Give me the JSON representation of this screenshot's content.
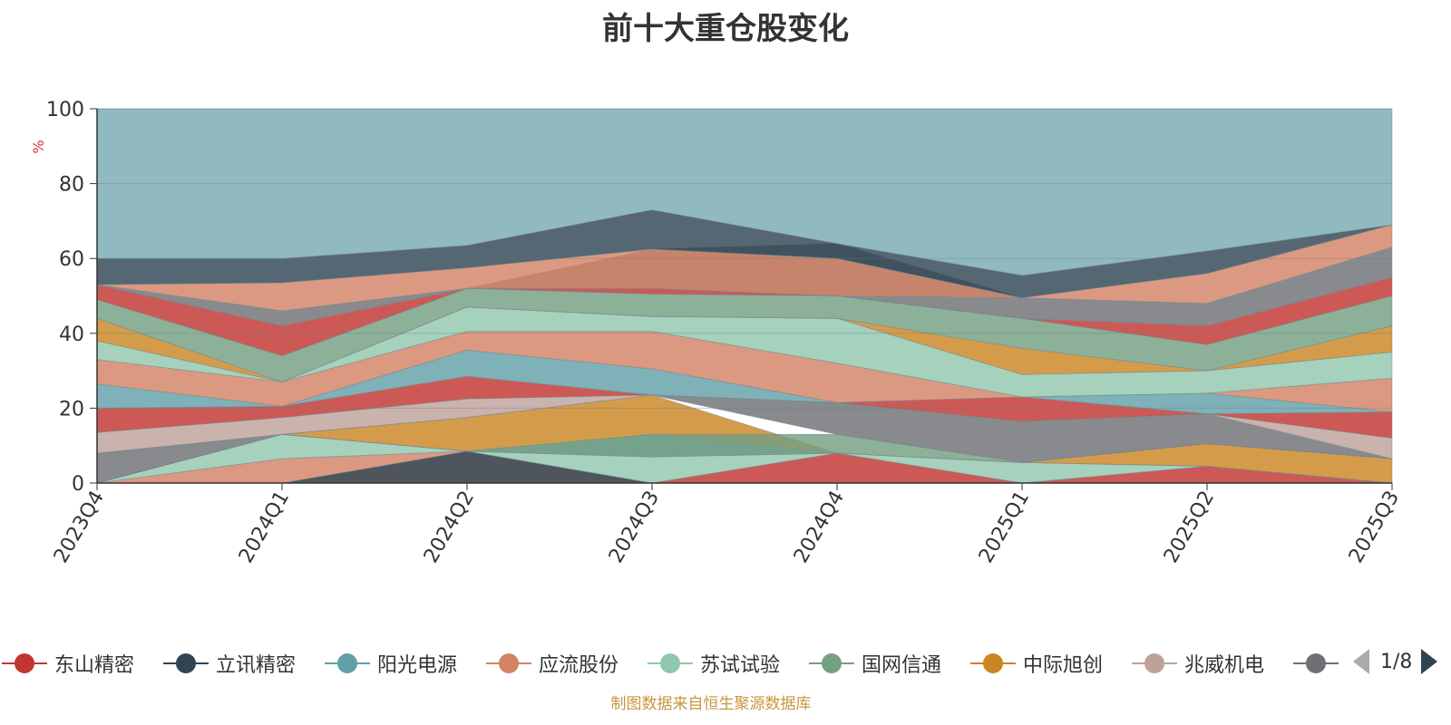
{
  "title": "前十大重仓股变化",
  "source": "制图数据来自恒生聚源数据库",
  "legend_page": "1/8",
  "colors": {
    "background_band": "#91b9c0",
    "axis": "#333333",
    "ylabel": "#e03030",
    "source": "#c8963e"
  },
  "legend": [
    {
      "name": "东山精密",
      "color": "#c23531"
    },
    {
      "name": "立讯精密",
      "color": "#2f4554"
    },
    {
      "name": "阳光电源",
      "color": "#61a0a8"
    },
    {
      "name": "应流股份",
      "color": "#d48265"
    },
    {
      "name": "苏试试验",
      "color": "#91c7ae"
    },
    {
      "name": "国网信通",
      "color": "#749f83"
    },
    {
      "name": "中际旭创",
      "color": "#ca8622"
    },
    {
      "name": "兆威机电",
      "color": "#bda29a"
    },
    {
      "name": "",
      "color": "#6e7074"
    }
  ],
  "chart_data": {
    "type": "area",
    "title": "前十大重仓股变化",
    "xlabel": "",
    "ylabel": "%",
    "ylim": [
      0,
      100
    ],
    "yticks": [
      "0",
      "20",
      "40",
      "60",
      "80",
      "100"
    ],
    "categories": [
      "2023Q4",
      "2024Q1",
      "2024Q2",
      "2024Q3",
      "2024Q4",
      "2025Q1",
      "2025Q2",
      "2025Q3"
    ],
    "grid": true,
    "legend_position": "bottom",
    "bands": [
      {
        "color": "#d48265",
        "lower": [
          0,
          0,
          0,
          0,
          0,
          0,
          0,
          0
        ],
        "upper": [
          0,
          6.5,
          8.5,
          0,
          0,
          0,
          0,
          0
        ]
      },
      {
        "color": "#2f4554",
        "lower": [
          0,
          0,
          0,
          0,
          0,
          0,
          0,
          0
        ],
        "upper": [
          0,
          0,
          8.5,
          0,
          0,
          0,
          0,
          0
        ]
      },
      {
        "color": "#c23531",
        "lower": [
          0,
          0,
          0,
          0,
          0,
          0,
          0,
          0
        ],
        "upper": [
          0,
          0,
          0,
          0,
          8,
          0,
          4.5,
          0
        ]
      },
      {
        "color": "#91c7ae",
        "lower": [
          0,
          6.5,
          8.5,
          0,
          8,
          0,
          4.5,
          0
        ],
        "upper": [
          0,
          13,
          8.5,
          7,
          8,
          5.5,
          4.5,
          0
        ]
      },
      {
        "color": "#61a0a8",
        "lower": [
          0,
          13,
          8.5,
          7,
          8,
          5.5,
          4.5,
          0
        ],
        "upper": [
          0,
          13,
          8.5,
          13,
          8,
          5.5,
          4.5,
          0
        ]
      },
      {
        "color": "#ca8622",
        "lower": [
          0,
          13,
          8.5,
          13,
          8,
          5.5,
          4.5,
          0
        ],
        "upper": [
          0,
          13,
          17.5,
          23.5,
          8,
          5.5,
          10.5,
          6.5
        ]
      },
      {
        "color": "#749f83",
        "lower": [
          0,
          13,
          8.5,
          7,
          8,
          5.5,
          10.5,
          6.5
        ],
        "upper": [
          0,
          13,
          8.5,
          13,
          13,
          5.5,
          10.5,
          6.5
        ]
      },
      {
        "color": "#6e7074",
        "lower": [
          0,
          13,
          17.5,
          23.5,
          13,
          5.5,
          10.5,
          6.5
        ],
        "upper": [
          8,
          13,
          17.5,
          23.5,
          21.5,
          16.5,
          18.5,
          6.5
        ]
      },
      {
        "color": "#bda29a",
        "lower": [
          8,
          13,
          17.5,
          23.5,
          21.5,
          16.5,
          18.5,
          6.5
        ],
        "upper": [
          13.5,
          17.5,
          22.5,
          23.5,
          21.5,
          16.5,
          18.5,
          12
        ]
      },
      {
        "color": "#c23531",
        "lower": [
          13.5,
          17.5,
          22.5,
          23.5,
          21.5,
          16.5,
          18.5,
          12
        ],
        "upper": [
          20,
          20.5,
          28.5,
          23.5,
          21.5,
          23,
          18.5,
          19
        ]
      },
      {
        "color": "#61a0a8",
        "lower": [
          20,
          20.5,
          28.5,
          23.5,
          21.5,
          23,
          18.5,
          19
        ],
        "upper": [
          26.5,
          20.5,
          35.5,
          30.5,
          21.5,
          23,
          24,
          19
        ]
      },
      {
        "color": "#d48265",
        "lower": [
          26.5,
          20.5,
          35.5,
          30.5,
          21.5,
          23,
          24,
          19
        ],
        "upper": [
          33,
          27,
          40.5,
          40.5,
          32,
          23,
          24,
          28
        ]
      },
      {
        "color": "#91c7ae",
        "lower": [
          33,
          27,
          40.5,
          40.5,
          32,
          23,
          24,
          28
        ],
        "upper": [
          38,
          27,
          47,
          44.5,
          44,
          29,
          30,
          35
        ]
      },
      {
        "color": "#ca8622",
        "lower": [
          38,
          27,
          47,
          44.5,
          44,
          29,
          30,
          35
        ],
        "upper": [
          44,
          27,
          47,
          44.5,
          44,
          36,
          30,
          42
        ]
      },
      {
        "color": "#749f83",
        "lower": [
          44,
          27,
          47,
          44.5,
          44,
          36,
          30,
          42
        ],
        "upper": [
          49,
          34,
          52,
          50.5,
          50,
          44,
          37,
          50
        ]
      },
      {
        "color": "#c23531",
        "lower": [
          49,
          34,
          52,
          50.5,
          50,
          44,
          37,
          50
        ],
        "upper": [
          53,
          42,
          52,
          52,
          50,
          44,
          42,
          55
        ]
      },
      {
        "color": "#6e7074",
        "lower": [
          53,
          42,
          52,
          52,
          50,
          44,
          42,
          55
        ],
        "upper": [
          53,
          46,
          52,
          62.5,
          64,
          49.5,
          48,
          63
        ]
      },
      {
        "color": "#d48265",
        "lower": [
          53,
          46,
          52,
          52,
          50,
          49.5,
          48,
          63
        ],
        "upper": [
          53,
          53.5,
          57.5,
          62.5,
          60,
          49.5,
          56,
          69
        ]
      },
      {
        "color": "#2f4554",
        "lower": [
          53,
          53.5,
          57.5,
          62.5,
          60,
          49.5,
          56,
          69
        ],
        "upper": [
          60,
          60,
          63.5,
          73,
          64,
          55.5,
          62,
          69
        ]
      },
      {
        "color": "#91b9c0",
        "lower": [
          60,
          60,
          63.5,
          73,
          64,
          55.5,
          62,
          69
        ],
        "upper": [
          100,
          100,
          100,
          100,
          100,
          100,
          100,
          100
        ]
      }
    ]
  }
}
